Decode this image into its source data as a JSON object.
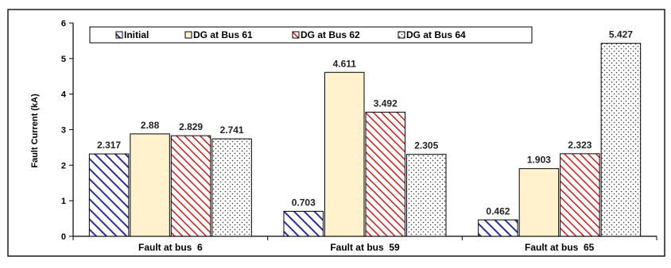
{
  "chart_data": {
    "type": "bar",
    "categories": [
      "Fault at bus  6",
      "Fault at bus  59",
      "Fault at bus  65"
    ],
    "series": [
      {
        "name": "Initial",
        "values": [
          2.317,
          0.703,
          0.462
        ],
        "pattern": "blue-hatch"
      },
      {
        "name": "DG at Bus 61",
        "values": [
          2.88,
          4.611,
          1.903
        ],
        "pattern": "cream-solid"
      },
      {
        "name": "DG at Bus 62",
        "values": [
          2.829,
          3.492,
          2.323
        ],
        "pattern": "red-hatch"
      },
      {
        "name": "DG at Bus 64",
        "values": [
          2.741,
          2.305,
          5.427
        ],
        "pattern": "dots"
      }
    ],
    "value_labels": [
      [
        "2.317",
        "0.703",
        "0.462"
      ],
      [
        "2.88",
        "4.611",
        "1.903"
      ],
      [
        "2.829",
        "3.492",
        "2.323"
      ],
      [
        "2.741",
        "2.305",
        "5.427"
      ]
    ],
    "yticks": [
      "0",
      "1",
      "2",
      "3",
      "4",
      "5",
      "6"
    ],
    "ylim": [
      0,
      6
    ],
    "ylabel": "Fault Current (kA)",
    "xlabel": "",
    "title": "",
    "grid": false,
    "legend_position": "top",
    "colors": {
      "initial": "#2b2bb8",
      "bus61_fill": "#fff2cc",
      "bus62": "#ee1111",
      "bus64": "#333333",
      "axis": "#000000",
      "frame": "#1a1a1a"
    }
  }
}
